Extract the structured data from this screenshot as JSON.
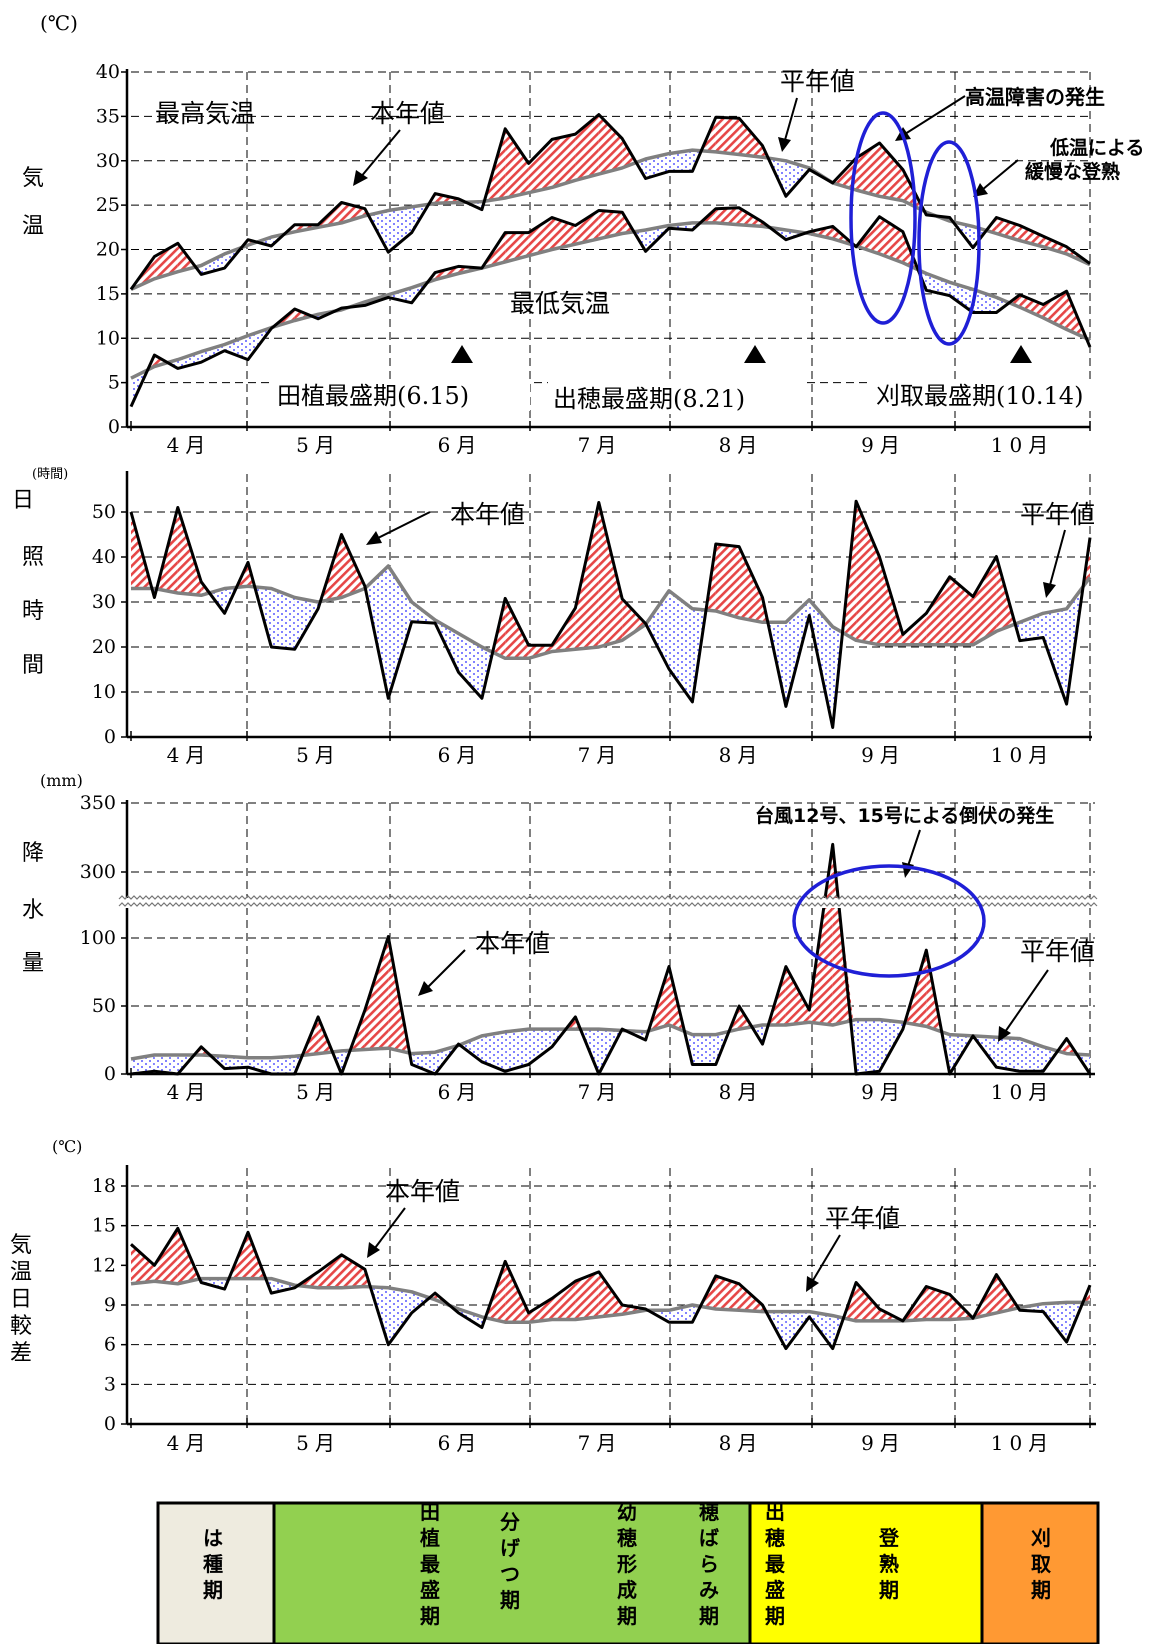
{
  "months": [
    "4月",
    "5月",
    "6月",
    "7月",
    "8月",
    "9月",
    "10月"
  ],
  "stage_bar": [
    {
      "label": "は種期",
      "color": "#eeebdf"
    },
    {
      "label": "田植最盛期",
      "color": "#92d050"
    },
    {
      "label": "分げつ期",
      "color": "#92d050"
    },
    {
      "label": "幼穂形成期",
      "color": "#92d050"
    },
    {
      "label": "穂ばらみ期",
      "color": "#92d050"
    },
    {
      "label": "出穂最盛期",
      "color": "#ffff00"
    },
    {
      "label": "登熟期",
      "color": "#ffff00"
    },
    {
      "label": "刈取期",
      "color": "#ff9933"
    }
  ],
  "colors": {
    "current_year": "#000000",
    "normal": "#808080",
    "above_fill": "#e64646",
    "below_fill": "#5a5aff",
    "highlight_ellipse": "#1f1fd6"
  },
  "chart_data": [
    {
      "id": "temperature",
      "type": "line",
      "unit_label": "(℃)",
      "ylabel": "気温",
      "ylim": [
        0,
        40
      ],
      "yticks": [
        0,
        5,
        10,
        15,
        20,
        25,
        30,
        35,
        40
      ],
      "x_labels": "months",
      "series": [
        {
          "name": "最高気温 本年値",
          "values": [
            15.5,
            19.2,
            20.7,
            17.2,
            17.9,
            21.1,
            20.4,
            22.8,
            22.8,
            25.3,
            24.6,
            19.7,
            21.9,
            26.3,
            25.7,
            24.5,
            33.6,
            29.7,
            32.4,
            33.0,
            35.2,
            32.5,
            28.0,
            28.8,
            28.8,
            34.9,
            34.8,
            31.7,
            26.0,
            29.0,
            27.5,
            30.3,
            32.0,
            29.0,
            23.9,
            23.6,
            20.2,
            23.6,
            22.7,
            21.5,
            20.3,
            18.4
          ]
        },
        {
          "name": "最高気温 平年値",
          "values": [
            15.5,
            16.7,
            17.5,
            18.2,
            19.5,
            20.5,
            21.4,
            22.0,
            22.5,
            23.0,
            23.8,
            24.4,
            24.8,
            25.2,
            25.3,
            25.4,
            25.8,
            26.4,
            27.0,
            27.8,
            28.5,
            29.2,
            30.2,
            30.8,
            31.2,
            31.0,
            30.7,
            30.4,
            30.0,
            29.2,
            27.5,
            26.7,
            26.0,
            25.5,
            24.2,
            23.2,
            22.6,
            21.8,
            21.0,
            20.3,
            19.5,
            18.3
          ]
        },
        {
          "name": "最低気温 本年値",
          "values": [
            2.3,
            8.1,
            6.6,
            7.3,
            8.6,
            7.6,
            11.1,
            13.3,
            12.2,
            13.4,
            13.7,
            14.6,
            14.0,
            17.4,
            18.1,
            17.9,
            21.9,
            21.9,
            23.6,
            22.7,
            24.4,
            24.2,
            19.8,
            22.4,
            22.2,
            24.6,
            24.7,
            23.1,
            21.1,
            22.0,
            22.6,
            20.3,
            23.7,
            22.0,
            15.4,
            14.8,
            12.9,
            12.9,
            14.9,
            13.8,
            15.3,
            9.0
          ]
        },
        {
          "name": "最低気温 平年値",
          "values": [
            5.5,
            6.8,
            7.6,
            8.5,
            9.3,
            10.3,
            11.2,
            12.0,
            12.7,
            13.2,
            14.1,
            14.9,
            15.7,
            16.6,
            17.3,
            17.9,
            18.6,
            19.3,
            20.0,
            20.6,
            21.2,
            21.8,
            22.2,
            22.7,
            23.0,
            23.0,
            22.8,
            22.6,
            22.2,
            21.8,
            21.2,
            20.4,
            19.5,
            18.5,
            17.3,
            16.3,
            15.5,
            14.6,
            13.5,
            12.3,
            11.0,
            9.8
          ]
        }
      ],
      "annotations": [
        "最高気温",
        "本年値",
        "平年値",
        "最低気温",
        "高温障害の発生",
        "低温による",
        "緩慢な登熟"
      ],
      "markers": [
        "田植最盛期(6.15)",
        "出穂最盛期(8.21)",
        "刈取最盛期(10.14)"
      ]
    },
    {
      "id": "sunshine",
      "type": "line",
      "unit_label": "(時間)",
      "ylabel": "日照時間",
      "ylim": [
        0,
        50
      ],
      "yticks": [
        0,
        10,
        20,
        30,
        40,
        50
      ],
      "x_labels": "months",
      "series": [
        {
          "name": "本年値",
          "values": [
            50,
            31,
            51,
            34.5,
            27.5,
            38.8,
            20.0,
            19.5,
            28.5,
            45.0,
            33.5,
            8.6,
            25.6,
            25.3,
            14.4,
            8.6,
            30.8,
            20.4,
            20.4,
            28.7,
            52.1,
            30.7,
            25.2,
            15.1,
            7.8,
            42.9,
            42.3,
            31.0,
            6.8,
            27.0,
            2.1,
            52.4,
            40.0,
            22.8,
            27.5,
            35.6,
            31.2,
            40.1,
            21.4,
            22.1,
            7.3,
            44.3
          ]
        },
        {
          "name": "平年値",
          "values": [
            33,
            33,
            32,
            31.5,
            33,
            33.5,
            33,
            31,
            30,
            31,
            33,
            38,
            30,
            26,
            23,
            20,
            17.5,
            17.5,
            19,
            19.5,
            20,
            21.5,
            25,
            32.5,
            28.5,
            28,
            26.5,
            25.5,
            25.5,
            30.5,
            24.5,
            21.5,
            20.5,
            20.5,
            20.5,
            20.5,
            20.5,
            23.5,
            25.5,
            27.5,
            28.5,
            35.5
          ]
        }
      ],
      "annotations": [
        "本年値",
        "平年値"
      ]
    },
    {
      "id": "precipitation",
      "type": "line",
      "unit_label": "(mm)",
      "ylabel": "降水量",
      "yticks": [
        0,
        50,
        100,
        300,
        350
      ],
      "axis_break": "100 → 300",
      "x_labels": "months",
      "series": [
        {
          "name": "本年値",
          "values": [
            0,
            2,
            0,
            20,
            4,
            5,
            0,
            0,
            42,
            0,
            47,
            101,
            7,
            0,
            22,
            9,
            2,
            7,
            20,
            42,
            0,
            33,
            25,
            79,
            7,
            7,
            50,
            22,
            79,
            47,
            320,
            0,
            2,
            33,
            91,
            0,
            28,
            5,
            2,
            2,
            26,
            0
          ]
        },
        {
          "name": "平年値",
          "values": [
            11,
            14,
            14,
            14,
            13,
            12,
            12,
            13,
            15,
            17,
            18,
            19,
            15,
            16,
            21,
            28,
            31,
            33,
            33,
            33,
            33,
            32,
            31,
            36,
            29,
            29,
            33,
            36,
            36,
            38,
            36,
            40,
            40,
            38,
            35,
            29,
            28,
            27,
            26,
            20,
            15,
            14
          ]
        }
      ],
      "annotations": [
        "本年値",
        "平年値",
        "台風12号、15号による倒伏の発生"
      ]
    },
    {
      "id": "diurnal_range",
      "type": "line",
      "unit_label": "(℃)",
      "ylabel": "気温日較差",
      "ylim": [
        0,
        18
      ],
      "yticks": [
        0,
        3,
        6,
        9,
        12,
        15,
        18
      ],
      "x_labels": "months",
      "series": [
        {
          "name": "本年値",
          "values": [
            13.6,
            12.0,
            14.8,
            10.7,
            10.2,
            14.5,
            9.9,
            10.3,
            11.5,
            12.8,
            11.7,
            6.0,
            8.4,
            9.9,
            8.4,
            7.3,
            12.3,
            8.4,
            9.5,
            10.8,
            11.5,
            9.0,
            8.7,
            7.7,
            7.7,
            11.2,
            10.6,
            9.0,
            5.7,
            8.1,
            5.7,
            10.7,
            8.7,
            7.8,
            10.4,
            9.8,
            8.0,
            11.3,
            8.6,
            8.5,
            6.2,
            10.5
          ]
        },
        {
          "name": "平年値",
          "values": [
            10.6,
            10.8,
            10.6,
            11.0,
            11.0,
            11.0,
            11.0,
            10.5,
            10.3,
            10.3,
            10.4,
            10.3,
            10.0,
            9.4,
            8.7,
            8.1,
            7.7,
            7.7,
            7.9,
            7.9,
            8.1,
            8.3,
            8.6,
            8.6,
            9.0,
            8.7,
            8.6,
            8.5,
            8.5,
            8.5,
            8.2,
            7.8,
            7.8,
            7.8,
            7.9,
            7.9,
            8.0,
            8.4,
            8.8,
            9.1,
            9.2,
            9.2
          ]
        }
      ],
      "annotations": [
        "本年値",
        "平年値"
      ]
    }
  ]
}
